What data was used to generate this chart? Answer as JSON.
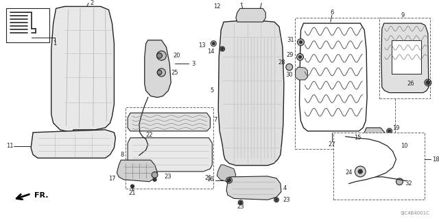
{
  "bg_color": "#ffffff",
  "diagram_code": "SJC4B4001C",
  "fr_label": "FR.",
  "line_color": "#222222",
  "label_fontsize": 6.0,
  "dashed_box_color": "#555555"
}
